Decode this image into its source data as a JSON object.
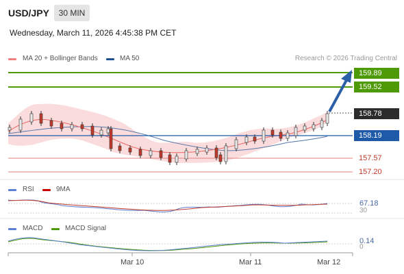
{
  "header": {
    "symbol": "USD/JPY",
    "timeframe": "30 MIN",
    "datetime": "Wednesday, March 11, 2026 4:45:38 PM CET"
  },
  "legend": {
    "ma20_label": "MA 20 + Bollinger Bands",
    "ma50_label": "MA 50",
    "credit": "Research © 2026 Trading Central"
  },
  "levels": {
    "r2": "159.89",
    "r1": "159.52",
    "current": "158.78",
    "pivot": "158.19",
    "s1": "157.57",
    "s2": "157.20"
  },
  "rsi_panel": {
    "rsi_label": "RSI",
    "ma_label": "9MA",
    "value": "67.18",
    "level_70": "70",
    "level_30": "30"
  },
  "macd_panel": {
    "macd_label": "MACD",
    "signal_label": "MACD Signal",
    "value": "0.14",
    "zero": "0"
  },
  "xaxis": {
    "labels": [
      "Mar 10",
      "Mar 11",
      "Mar 12"
    ]
  },
  "colors": {
    "up_candle": "#e8e8e8",
    "down_candle": "#c0392b",
    "resistance": "#4e9a06",
    "pivot": "#1e5aa8",
    "support": "#d9534f",
    "bollinger_fill": "#f9d6d6",
    "ma20": "#e66",
    "ma50": "#5577aa",
    "rsi": "#5b7fd1",
    "macd_signal": "#4e9a06"
  }
}
